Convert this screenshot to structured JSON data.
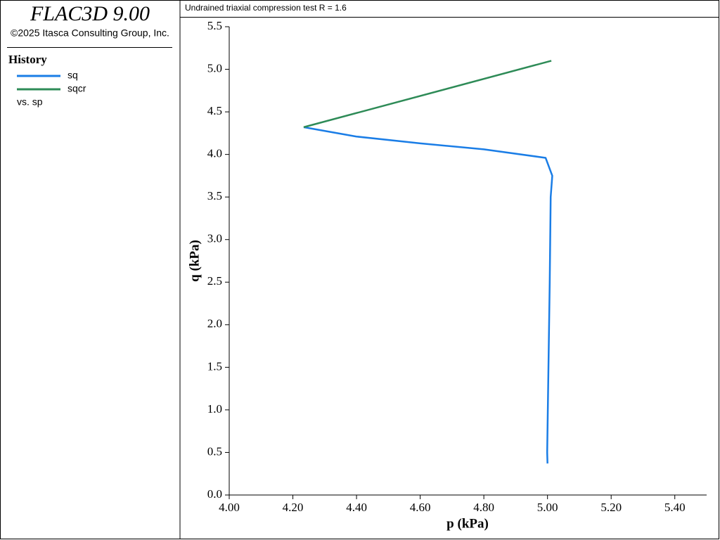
{
  "header": {
    "app": "FLAC3D 9.00",
    "copyright": "©2025 Itasca Consulting Group, Inc.",
    "legend_title": "History",
    "versus": "vs. sp"
  },
  "chart_data": {
    "type": "line",
    "title": "Undrained triaxial compression test R = 1.6",
    "x_label": "p (kPa)",
    "y_label": "q (kPa)",
    "series": [
      {
        "name": "sq",
        "color": "#1a7de6",
        "x": [
          5.0,
          4.999,
          5.003,
          5.007,
          5.01,
          5.015,
          4.994,
          4.8,
          4.6,
          4.4,
          4.234
        ],
        "values": [
          0.37,
          0.5,
          1.5,
          2.5,
          3.5,
          3.75,
          3.96,
          4.06,
          4.13,
          4.21,
          4.32
        ]
      },
      {
        "name": "sqcr",
        "color": "#2e8b57",
        "x": [
          4.234,
          5.012
        ],
        "values": [
          4.32,
          5.1
        ]
      }
    ],
    "xlim": [
      4.0,
      5.5
    ],
    "xticks": [
      {
        "value": 4.0,
        "label": "4.00"
      },
      {
        "value": 4.2,
        "label": "4.20"
      },
      {
        "value": 4.4,
        "label": "4.40"
      },
      {
        "value": 4.6,
        "label": "4.60"
      },
      {
        "value": 4.8,
        "label": "4.80"
      },
      {
        "value": 5.0,
        "label": "5.00"
      },
      {
        "value": 5.2,
        "label": "5.20"
      },
      {
        "value": 5.4,
        "label": "5.40"
      }
    ],
    "ylim": [
      0,
      5.5
    ],
    "yticks": [
      {
        "value": 0,
        "label": "0.0"
      },
      0.5,
      {
        "value": 1,
        "label": "1.0"
      },
      1.5,
      {
        "value": 2,
        "label": "2.0"
      },
      2.5,
      {
        "value": 3,
        "label": "3.0"
      },
      3.5,
      {
        "value": 4,
        "label": "4.0"
      },
      4.5,
      {
        "value": 5,
        "label": "5.0"
      },
      5.5
    ]
  }
}
